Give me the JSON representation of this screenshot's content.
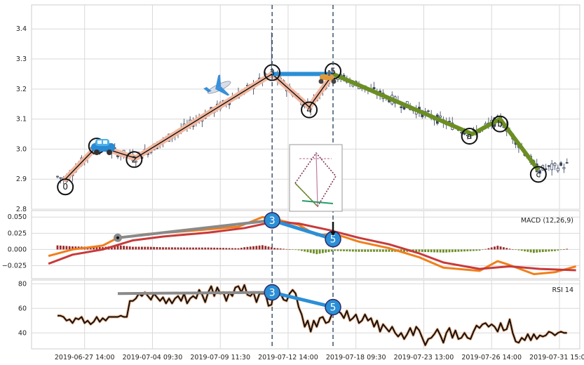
{
  "chart_data": [
    {
      "type": "candlestick",
      "panel": "price",
      "title": "",
      "ylim": [
        2.8,
        3.48
      ],
      "yticks": [
        "2.8",
        "2.9",
        "3.0",
        "3.1",
        "3.2",
        "3.3",
        "3.4"
      ],
      "xticks": [
        "2019-06-27 14:00",
        "2019-07-04 09:30",
        "2019-07-09 11:30",
        "2019-07-12 14:00",
        "2019-07-18 09:30",
        "2019-07-23 13:00",
        "2019-07-26 14:00",
        "2019-07-31 15:00"
      ],
      "grid": true,
      "wave_points": [
        {
          "label": "0",
          "x": 2.6,
          "y": 2.9
        },
        {
          "label": "1",
          "x": 13.2,
          "y": 3.01
        },
        {
          "label": "2",
          "x": 25.9,
          "y": 2.97
        },
        {
          "label": "3",
          "x": 71.2,
          "y": 3.25
        },
        {
          "label": "4",
          "x": 83.5,
          "y": 3.14
        },
        {
          "label": "5",
          "x": 91.4,
          "y": 3.25
        },
        {
          "label": "a",
          "x": 137.6,
          "y": 3.05
        },
        {
          "label": "b",
          "x": 146.8,
          "y": 3.1
        },
        {
          "label": "c",
          "x": 159.5,
          "y": 2.93
        }
      ]
    },
    {
      "type": "line",
      "panel": "macd",
      "title": "MACD (12,26,9)",
      "ylim": [
        -0.045,
        0.06
      ],
      "yticks": [
        "0.050",
        "0.025",
        "0.000",
        "−0.025"
      ],
      "series": [
        {
          "name": "",
          "points": [
            [
              -3,
              -0.01
            ],
            [
              5,
              0.0
            ],
            [
              15,
              0.006
            ],
            [
              20,
              0.018
            ],
            [
              30,
              0.024
            ],
            [
              45,
              0.029
            ],
            [
              60,
              0.035
            ],
            [
              68,
              0.05
            ],
            [
              72,
              0.047
            ],
            [
              80,
              0.038
            ],
            [
              86,
              0.022
            ],
            [
              92,
              0.024
            ],
            [
              100,
              0.012
            ],
            [
              110,
              0.002
            ],
            [
              120,
              -0.012
            ],
            [
              128,
              -0.028
            ],
            [
              140,
              -0.033
            ],
            [
              146,
              -0.018
            ],
            [
              150,
              -0.024
            ],
            [
              158,
              -0.038
            ],
            [
              165,
              -0.035
            ],
            [
              172,
              -0.026
            ]
          ]
        },
        {
          "name": "",
          "points": [
            [
              -3,
              -0.022
            ],
            [
              5,
              -0.008
            ],
            [
              15,
              0.0
            ],
            [
              25,
              0.014
            ],
            [
              35,
              0.02
            ],
            [
              50,
              0.026
            ],
            [
              62,
              0.033
            ],
            [
              72,
              0.043
            ],
            [
              80,
              0.04
            ],
            [
              90,
              0.03
            ],
            [
              100,
              0.018
            ],
            [
              110,
              0.008
            ],
            [
              120,
              -0.006
            ],
            [
              128,
              -0.02
            ],
            [
              140,
              -0.03
            ],
            [
              150,
              -0.026
            ],
            [
              160,
              -0.03
            ],
            [
              172,
              -0.032
            ]
          ]
        }
      ],
      "wave_points": [
        {
          "label": "3",
          "x": 71.2,
          "y": 0.045
        },
        {
          "label": "5",
          "x": 91.4,
          "y": 0.016
        }
      ]
    },
    {
      "type": "line",
      "panel": "rsi",
      "title": "RSI 14",
      "ylim": [
        27,
        83
      ],
      "yticks": [
        "80",
        "60",
        "40"
      ],
      "series": [
        {
          "name": "",
          "values": [
            54,
            54,
            53,
            50,
            51,
            48,
            52,
            51,
            53,
            48,
            50,
            47,
            49,
            53,
            49,
            52,
            50,
            53,
            53,
            53,
            53,
            54,
            53,
            53,
            66,
            66,
            68,
            72,
            70,
            73,
            70,
            67,
            72,
            69,
            66,
            69,
            64,
            68,
            64,
            68,
            70,
            66,
            72,
            64,
            68,
            70,
            68,
            75,
            71,
            65,
            73,
            78,
            70,
            77,
            72,
            73,
            66,
            73,
            70,
            77,
            78,
            73,
            79,
            71,
            70,
            73,
            65,
            72,
            72,
            72,
            62,
            63,
            77,
            73,
            72,
            67,
            66,
            72,
            75,
            72,
            61,
            55,
            45,
            50,
            41,
            50,
            45,
            52,
            53,
            48,
            49,
            55,
            60,
            58,
            56,
            52,
            58,
            50,
            52,
            55,
            48,
            50,
            55,
            50,
            52,
            45,
            50,
            41,
            47,
            44,
            41,
            45,
            40,
            37,
            40,
            35,
            39,
            44,
            38,
            45,
            42,
            36,
            30,
            35,
            36,
            39,
            43,
            38,
            32,
            40,
            44,
            36,
            42,
            35,
            36,
            40,
            36,
            35,
            41,
            46,
            44,
            47,
            48,
            45,
            47,
            45,
            41,
            48,
            42,
            43,
            51,
            40,
            33,
            32,
            36,
            34,
            39,
            34,
            39,
            35,
            38,
            37,
            38,
            41,
            40,
            38,
            40,
            41,
            40,
            40
          ]
        }
      ],
      "wave_points": [
        {
          "label": "3",
          "x": 71.2,
          "y": 73
        },
        {
          "label": "5",
          "x": 91.4,
          "y": 61
        }
      ]
    }
  ]
}
